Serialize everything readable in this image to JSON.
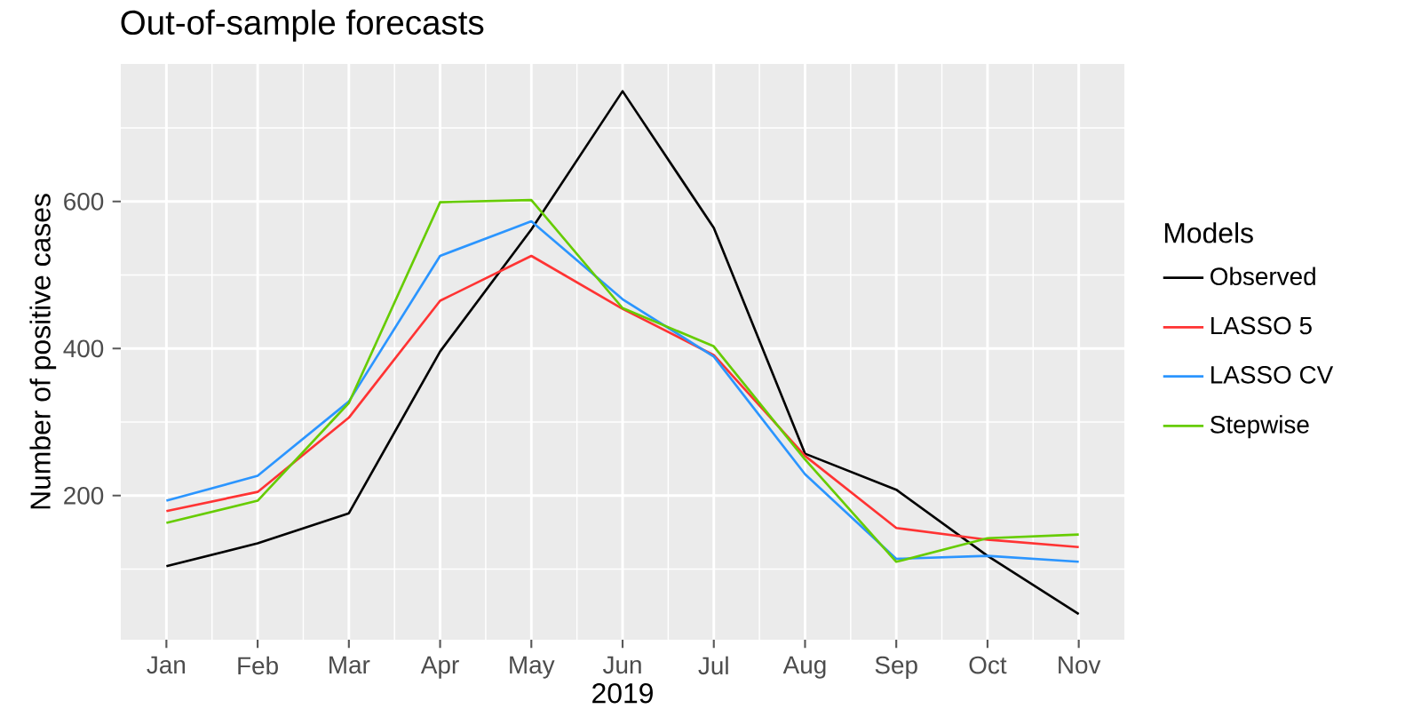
{
  "chart_data": {
    "type": "line",
    "title": "Out-of-sample forecasts",
    "xlabel": "2019",
    "ylabel": "Number of positive cases",
    "legend_title": "Models",
    "categories": [
      "Jan",
      "Feb",
      "Mar",
      "Apr",
      "May",
      "Jun",
      "Jul",
      "Aug",
      "Sep",
      "Oct",
      "Nov"
    ],
    "series": [
      {
        "name": "Observed",
        "color": "#000000",
        "values": [
          104,
          135,
          176,
          396,
          562,
          750,
          564,
          257,
          208,
          118,
          39
        ]
      },
      {
        "name": "LASSO 5",
        "color": "#ff3333",
        "values": [
          179,
          205,
          306,
          465,
          526,
          454,
          391,
          254,
          156,
          140,
          130
        ]
      },
      {
        "name": "LASSO CV",
        "color": "#2b95ff",
        "values": [
          193,
          227,
          328,
          526,
          573,
          467,
          389,
          229,
          114,
          118,
          110
        ]
      },
      {
        "name": "Stepwise",
        "color": "#66cc00",
        "values": [
          163,
          193,
          326,
          599,
          602,
          455,
          403,
          249,
          110,
          142,
          147
        ]
      }
    ],
    "ylim": [
      4,
      787
    ],
    "yticks": [
      200,
      400,
      600
    ],
    "grid": true,
    "legend": "right",
    "line_style": "solid",
    "marker": "none"
  }
}
